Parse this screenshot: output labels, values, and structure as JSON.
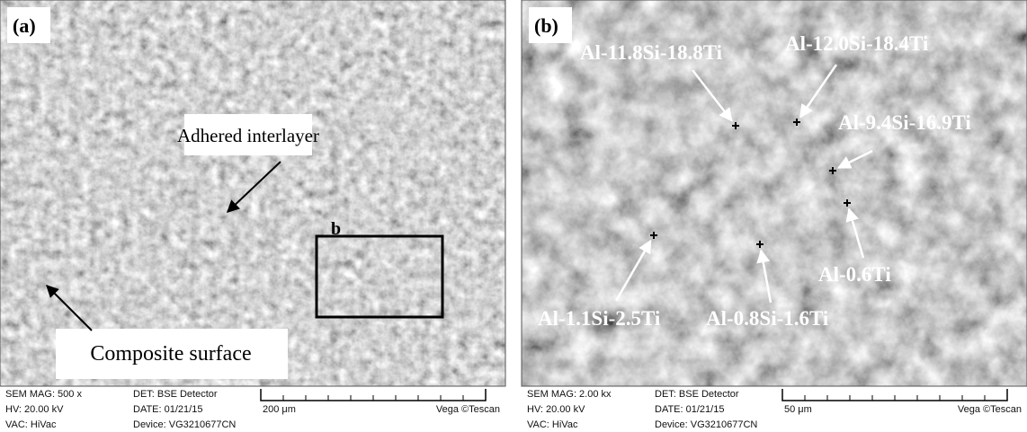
{
  "panels": [
    {
      "label": "(a)",
      "annotations": [
        "Adhered interlayer",
        "Composite surface"
      ],
      "box_label": "b",
      "info": {
        "mag": "SEM MAG: 500 x",
        "hv": "HV:  20.00 kV",
        "vac": "VAC: HiVac",
        "det": "DET: BSE Detector",
        "date": "DATE: 01/21/15",
        "device": "Device: VG3210677CN",
        "scale": "200 μm",
        "brand": "Vega ©Tescan"
      }
    },
    {
      "label": "(b)",
      "annotations": [
        "Al-11.8Si-18.8Ti",
        "Al-12.0Si-18.4Ti",
        "Al-9.4Si-16.9Ti",
        "Al-0.6Ti",
        "Al-1.1Si-2.5Ti",
        "Al-0.8Si-1.6Ti"
      ],
      "info": {
        "mag": "SEM MAG: 2.00 kx",
        "hv": "HV:  20.00 kV",
        "vac": "VAC: HiVac",
        "det": "DET: BSE Detector",
        "date": "DATE: 01/21/15",
        "device": "Device: VG3210677CN",
        "scale": "50 μm",
        "brand": "Vega ©Tescan"
      }
    }
  ]
}
